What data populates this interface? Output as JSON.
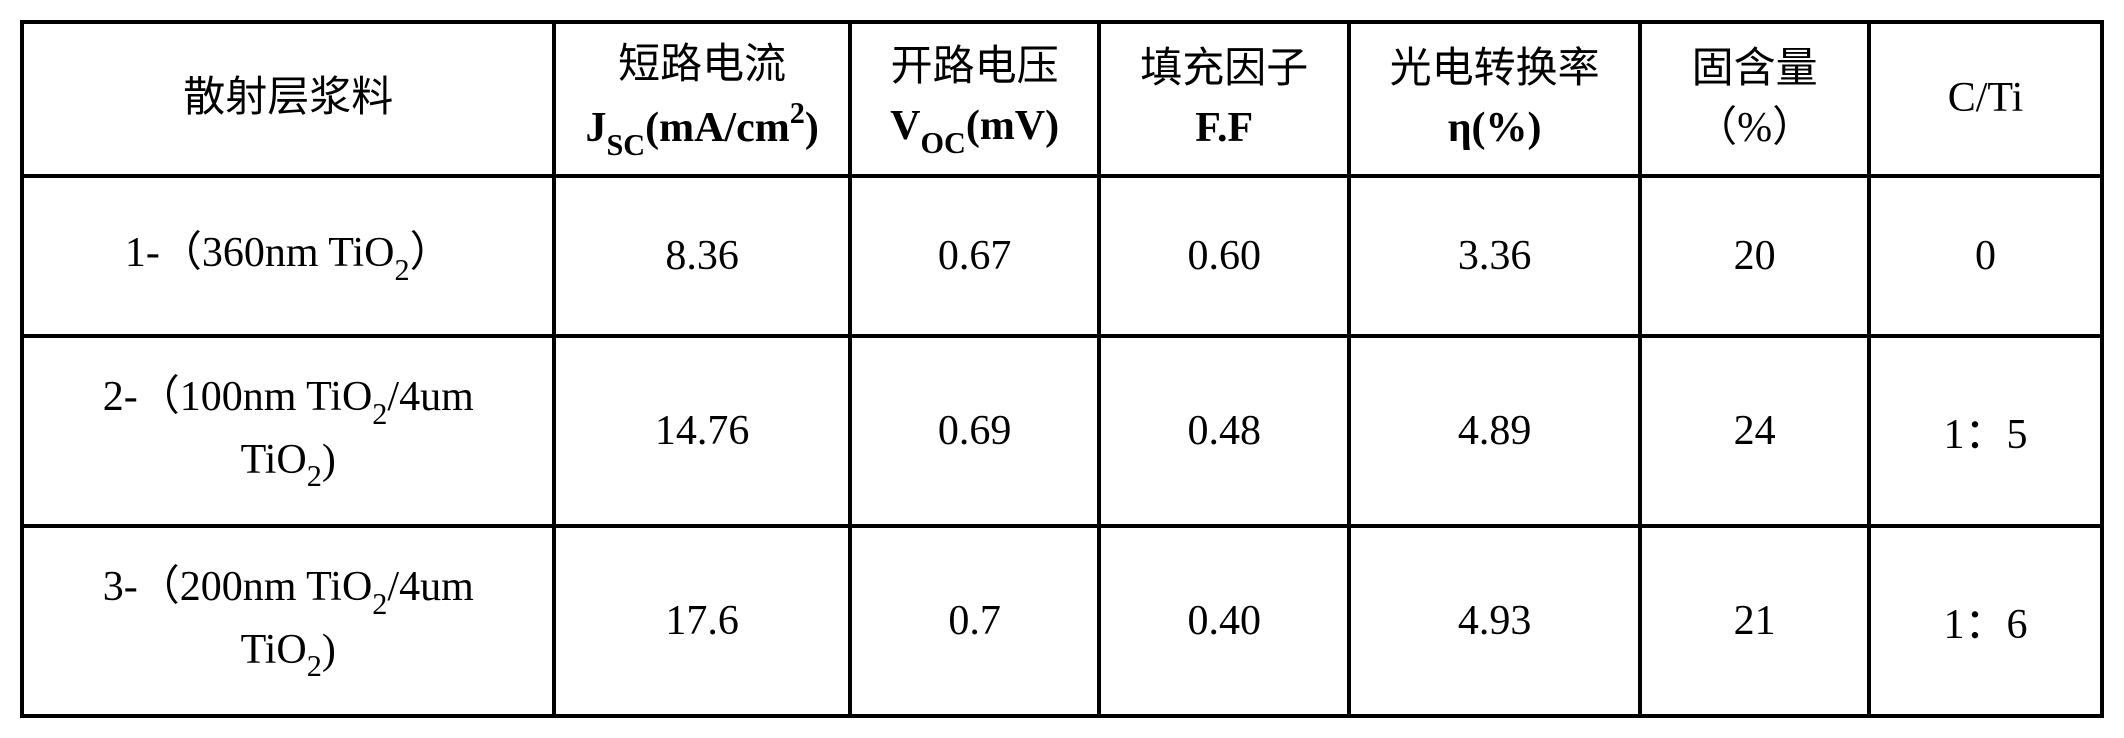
{
  "table": {
    "border_color": "#000000",
    "background_color": "#ffffff",
    "text_color": "#000000",
    "font_size_pt": 32,
    "columns": [
      {
        "key": "material",
        "header_line1": "散射层浆料",
        "header_line2": "",
        "width_pct": 25.6,
        "align": "center"
      },
      {
        "key": "jsc",
        "header_line1": "短路电流",
        "header_line2_prefix": "J",
        "header_line2_sub": "SC",
        "header_line2_suffix": "(mA/cm",
        "header_line2_sup": "2",
        "header_line2_end": ")",
        "width_pct": 14.2,
        "align": "center"
      },
      {
        "key": "voc",
        "header_line1": "开路电压",
        "header_line2_prefix": "V",
        "header_line2_sub": "OC",
        "header_line2_suffix": "(mV)",
        "width_pct": 12.0,
        "align": "center"
      },
      {
        "key": "ff",
        "header_line1": "填充因子",
        "header_line2": "F.F",
        "width_pct": 12.0,
        "align": "center"
      },
      {
        "key": "eta",
        "header_line1": "光电转换率",
        "header_line2": "η(%)",
        "width_pct": 14.0,
        "align": "center"
      },
      {
        "key": "solid",
        "header_line1": "固含量",
        "header_line2": "（%）",
        "width_pct": 11.0,
        "align": "center"
      },
      {
        "key": "cti",
        "header_line1": "C/Ti",
        "header_line2": "",
        "width_pct": 11.2,
        "align": "center"
      }
    ],
    "rows": [
      {
        "material_prefix": "1-（360nm TiO",
        "material_sub": "2",
        "material_suffix": "）",
        "material_line2_prefix": "",
        "material_line2_sub": "",
        "material_line2_suffix": "",
        "jsc": "8.36",
        "voc": "0.67",
        "ff": "0.60",
        "eta": "3.36",
        "solid": "20",
        "cti": "0",
        "tall": false
      },
      {
        "material_prefix": "2-（100nm TiO",
        "material_sub": "2",
        "material_suffix": "/4um",
        "material_line2_prefix": "TiO",
        "material_line2_sub": "2",
        "material_line2_suffix": ")",
        "jsc": "14.76",
        "voc": "0.69",
        "ff": "0.48",
        "eta": "4.89",
        "solid": "24",
        "cti": "1：5",
        "tall": true
      },
      {
        "material_prefix": "3-（200nm TiO",
        "material_sub": "2",
        "material_suffix": "/4um",
        "material_line2_prefix": "TiO",
        "material_line2_sub": "2",
        "material_line2_suffix": ")",
        "jsc": "17.6",
        "voc": "0.7",
        "ff": "0.40",
        "eta": "4.93",
        "solid": "21",
        "cti": "1：6",
        "tall": true
      }
    ]
  }
}
